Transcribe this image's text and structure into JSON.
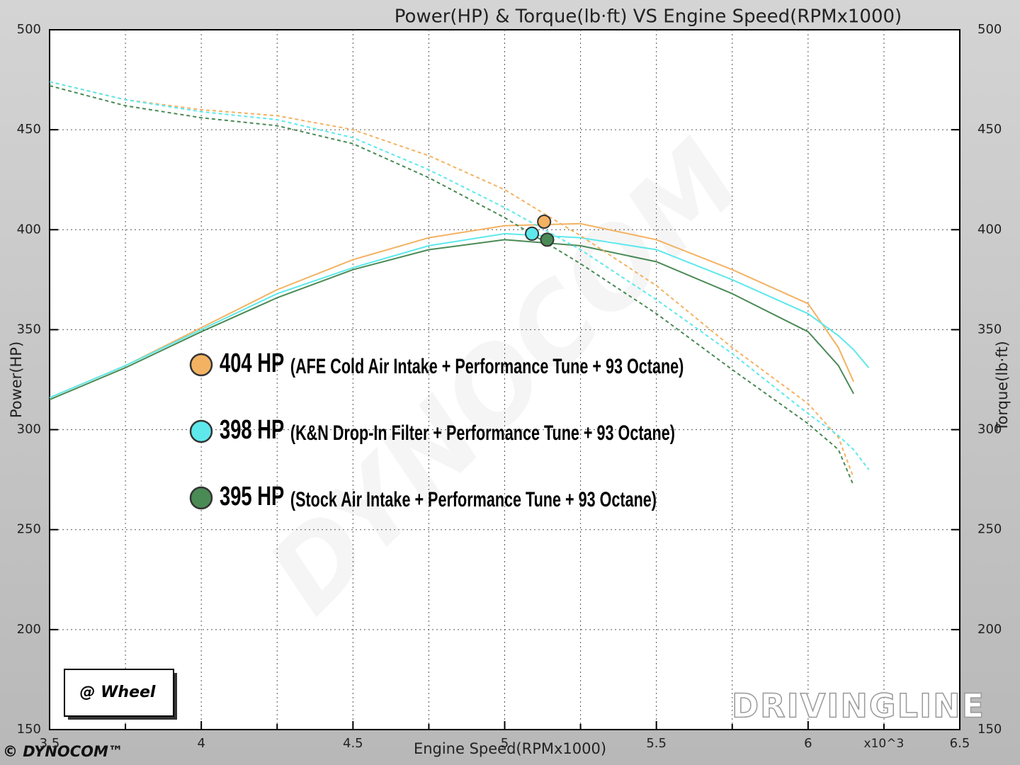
{
  "chart_data": {
    "type": "line",
    "title": "Power(HP) & Torque(lb·ft) VS Engine Speed(RPMx1000)",
    "x_label": "Engine Speed(RPMx1000)",
    "y_label": "Power(HP)",
    "y2_label": "Torque(lb·ft)",
    "x_unit_label": "x10^3",
    "box_label": "@ Wheel",
    "footer_logo": "© DYNOCOM™",
    "watermark": "DYNOCOM",
    "brand": "DRIVINGLINE",
    "x": [
      3.5,
      3.75,
      4.0,
      4.25,
      4.5,
      4.75,
      5.0,
      5.25,
      5.5,
      5.75,
      6.0,
      6.1,
      6.15,
      6.2
    ],
    "xlim": [
      3.5,
      6.5
    ],
    "xticks": [
      3.5,
      4,
      4.5,
      5,
      5.5,
      6,
      6.5
    ],
    "minor_xticks": [
      3.75,
      4.25,
      4.75,
      5.25,
      5.75,
      6.25
    ],
    "ylim": [
      150,
      500
    ],
    "yticks": [
      150,
      200,
      250,
      300,
      350,
      400,
      450,
      500
    ],
    "y2lim": [
      150,
      500
    ],
    "y2ticks": [
      150,
      200,
      250,
      300,
      350,
      400,
      450,
      500
    ],
    "grid": true,
    "series": [
      {
        "name": "(AFE Cold Air Intake + Performance Tune + 93 Octane)",
        "color": "#f3b262",
        "values": [
          316,
          332,
          351,
          370,
          385,
          396,
          402,
          403,
          395,
          380,
          363,
          341,
          324,
          null
        ],
        "peak": {
          "x": 5.13,
          "value": 404,
          "label": "404 HP"
        }
      },
      {
        "name": "(K&N Drop-In Filter + Performance Tune + 93 Octane)",
        "color": "#5ee8ec",
        "values": [
          316,
          332,
          350,
          368,
          381,
          392,
          398,
          396,
          390,
          375,
          358,
          347,
          340,
          331
        ],
        "peak": {
          "x": 5.09,
          "value": 398,
          "label": "398 HP"
        }
      },
      {
        "name": "(Stock Air Intake + Performance Tune + 93 Octane)",
        "color": "#4a8a55",
        "values": [
          315,
          331,
          349,
          366,
          380,
          390,
          395,
          392,
          384,
          368,
          349,
          332,
          318,
          null
        ],
        "peak": {
          "x": 5.14,
          "value": 395,
          "label": "395 HP"
        }
      },
      {
        "color": "#f3b262",
        "axis": "y2",
        "dashed": true,
        "values": [
          474,
          465,
          460,
          457,
          450,
          437,
          420,
          397,
          372,
          341,
          313,
          296,
          276,
          null
        ]
      },
      {
        "color": "#5ee8ec",
        "axis": "y2",
        "dashed": true,
        "values": [
          474,
          465,
          459,
          455,
          446,
          430,
          411,
          390,
          365,
          338,
          308,
          297,
          290,
          280
        ]
      },
      {
        "color": "#4a8a55",
        "axis": "y2",
        "dashed": true,
        "values": [
          472,
          462,
          456,
          452,
          443,
          426,
          406,
          383,
          358,
          330,
          303,
          290,
          272,
          null
        ]
      }
    ]
  }
}
